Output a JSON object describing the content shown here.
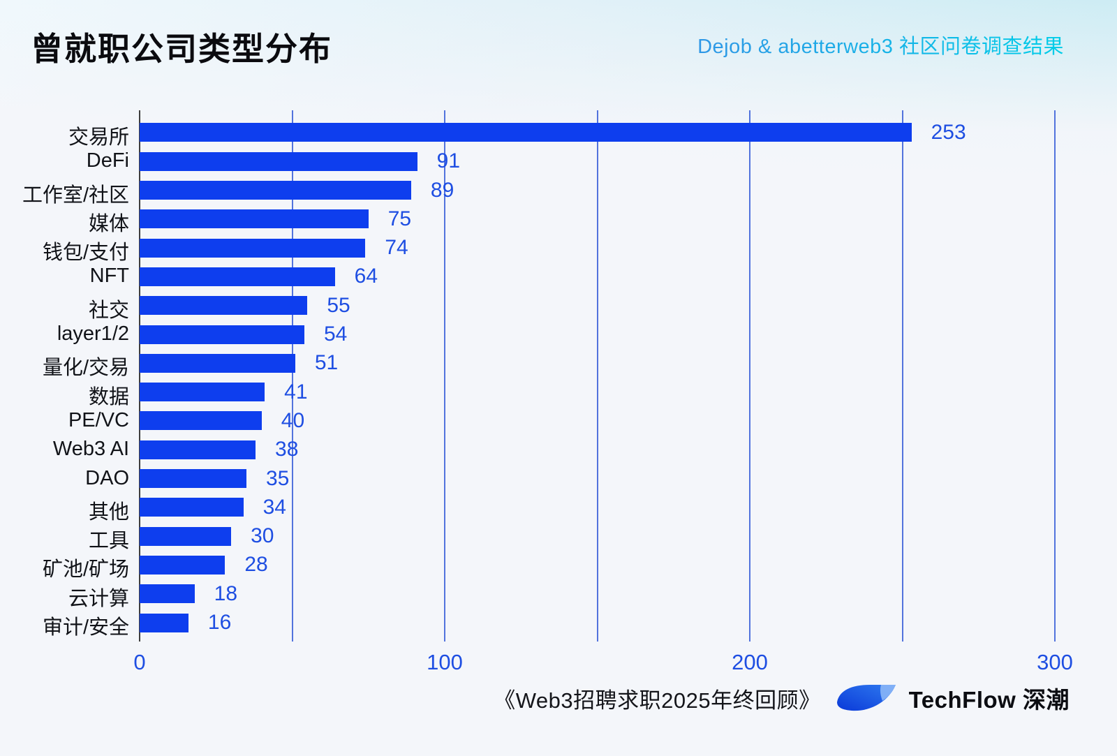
{
  "page": {
    "title": "曾就职公司类型分布",
    "subtitle": "Dejob & abetterweb3 社区问卷调查结果"
  },
  "footer": {
    "source": "《Web3招聘求职2025年终回顾》",
    "brand": "TechFlow 深潮"
  },
  "colors": {
    "bar": "#0e3eee",
    "value_label": "#1e4ee2",
    "tick_label": "#1e4ee2",
    "gridline": "#5273dd",
    "axis_line": "#3d3d3d",
    "title_text": "#0b0b0f",
    "category_label": "#111318",
    "subtitle_gradient_from": "#2f97e6",
    "subtitle_gradient_to": "#00cde8",
    "logo_gradient_from": "#0a39d8",
    "logo_gradient_to": "#2f7bf0",
    "logo_corner": "#8ab6f7"
  },
  "chart_data": {
    "type": "bar",
    "orientation": "horizontal",
    "title": "曾就职公司类型分布",
    "categories": [
      "交易所",
      "DeFi",
      "工作室/社区",
      "媒体",
      "钱包/支付",
      "NFT",
      "社交",
      "layer1/2",
      "量化/交易",
      "数据",
      "PE/VC",
      "Web3 AI",
      "DAO",
      "其他",
      "工具",
      "矿池/矿场",
      "云计算",
      "审计/安全"
    ],
    "values": [
      253,
      91,
      89,
      75,
      74,
      64,
      55,
      54,
      51,
      41,
      40,
      38,
      35,
      34,
      30,
      28,
      18,
      16
    ],
    "xlabel": "",
    "ylabel": "",
    "xlim": [
      0,
      300
    ],
    "x_ticks": [
      0,
      100,
      200,
      300
    ],
    "x_tick_labels": [
      "0",
      "100",
      "200",
      "300"
    ],
    "gridline_step": 50,
    "grid": true,
    "legend": false,
    "value_labels": true
  }
}
